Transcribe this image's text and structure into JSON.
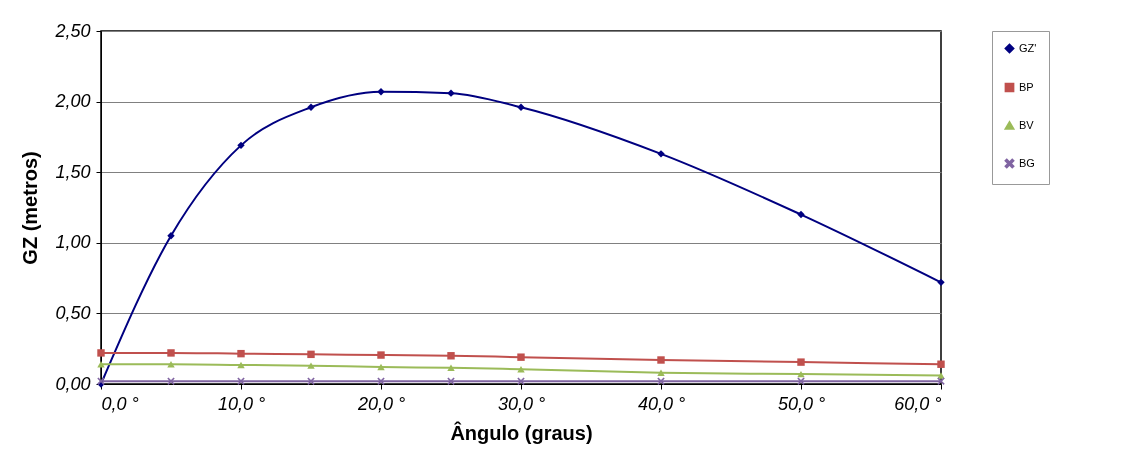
{
  "chart_data": {
    "type": "line",
    "xlabel": "Ângulo (graus)",
    "ylabel": "GZ (metros)",
    "x": [
      0,
      5,
      10,
      15,
      20,
      25,
      30,
      40,
      50,
      60
    ],
    "xlim": [
      0,
      60
    ],
    "xticks": [
      {
        "value": 0,
        "label": "0,0 °"
      },
      {
        "value": 10,
        "label": "10,0 °"
      },
      {
        "value": 20,
        "label": "20,0 °"
      },
      {
        "value": 30,
        "label": "30,0 °"
      },
      {
        "value": 40,
        "label": "40,0 °"
      },
      {
        "value": 50,
        "label": "50,0 °"
      },
      {
        "value": 60,
        "label": "60,0 °"
      }
    ],
    "ylim": [
      0,
      2.5
    ],
    "yticks": [
      {
        "value": 0,
        "label": "0,00"
      },
      {
        "value": 0.5,
        "label": "0,50"
      },
      {
        "value": 1,
        "label": "1,00"
      },
      {
        "value": 1.5,
        "label": "1,50"
      },
      {
        "value": 2,
        "label": "2,00"
      },
      {
        "value": 2.5,
        "label": "2,50"
      }
    ],
    "grid": "y",
    "legend": "right",
    "series": [
      {
        "name": "GZ'",
        "color": "#000080",
        "marker": "diamond",
        "values": [
          0,
          1.05,
          1.69,
          1.96,
          2.07,
          2.06,
          1.96,
          1.63,
          1.2,
          0.72
        ]
      },
      {
        "name": "BP",
        "color": "#c0504d",
        "marker": "square",
        "values": [
          0.22,
          0.22,
          0.215,
          0.21,
          0.205,
          0.2,
          0.19,
          0.17,
          0.155,
          0.14
        ]
      },
      {
        "name": "BV",
        "color": "#9bbb59",
        "marker": "triangle",
        "values": [
          0.14,
          0.14,
          0.135,
          0.13,
          0.12,
          0.115,
          0.105,
          0.08,
          0.07,
          0.06
        ]
      },
      {
        "name": "BG",
        "color": "#8064a2",
        "marker": "cross",
        "values": [
          0.02,
          0.02,
          0.02,
          0.02,
          0.02,
          0.02,
          0.02,
          0.02,
          0.02,
          0.02
        ]
      }
    ]
  }
}
